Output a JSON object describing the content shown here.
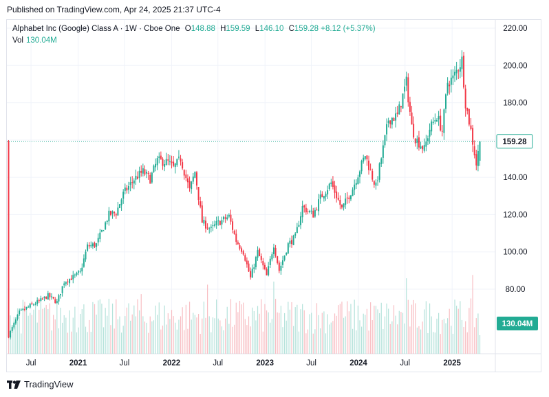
{
  "header": {
    "published": "Published on TradingView.com, Apr 24, 2025 21:37 UTC-4"
  },
  "legend": {
    "symbol": "Alphabet Inc (Google) Class A · 1W · Cboe One",
    "open_label": "O",
    "open": "148.88",
    "high_label": "H",
    "high": "159.59",
    "low_label": "L",
    "low": "146.10",
    "close_label": "C",
    "close": "159.28",
    "change": "+8.12 (+5.37%)",
    "vol_label": "Vol",
    "vol": "130.04M"
  },
  "footer": {
    "brand": "TradingView",
    "logo_icon": "tradingview-logo-icon"
  },
  "colors": {
    "up": "#22ab94",
    "down": "#f23645",
    "last_price_line": "#22ab94",
    "vol_badge": "#22ab94"
  },
  "chart_data": {
    "type": "candlestick",
    "interval": "1W",
    "ylim": [
      62,
      222
    ],
    "y_ticks": [
      "220.00",
      "200.00",
      "180.00",
      "160.00",
      "140.00",
      "120.00",
      "100.00",
      "80.00"
    ],
    "x_ticks": [
      "Jul",
      "2021",
      "Jul",
      "2022",
      "Jul",
      "2023",
      "Jul",
      "2024",
      "Jul",
      "2025"
    ],
    "x_tick_dates": [
      "2020-07-01",
      "2021-01-01",
      "2021-07-01",
      "2022-01-01",
      "2022-07-01",
      "2023-01-01",
      "2023-07-01",
      "2024-01-01",
      "2024-07-01",
      "2025-01-01"
    ],
    "date_range": [
      "2020-04-03",
      "2025-04-18"
    ],
    "last_price": "159.28",
    "last_volume": "130.04M",
    "close_path": [
      [
        "2020-04-03",
        55.0
      ],
      [
        "2020-05-15",
        67.5
      ],
      [
        "2020-06-26",
        71.0
      ],
      [
        "2020-08-07",
        74.0
      ],
      [
        "2020-09-04",
        76.5
      ],
      [
        "2020-10-09",
        73.0
      ],
      [
        "2020-11-06",
        84.0
      ],
      [
        "2020-12-18",
        87.0
      ],
      [
        "2021-01-08",
        89.0
      ],
      [
        "2021-02-05",
        103.0
      ],
      [
        "2021-03-12",
        104.0
      ],
      [
        "2021-04-30",
        120.0
      ],
      [
        "2021-05-28",
        121.0
      ],
      [
        "2021-06-25",
        131.0
      ],
      [
        "2021-08-06",
        139.0
      ],
      [
        "2021-09-10",
        143.0
      ],
      [
        "2021-10-08",
        139.0
      ],
      [
        "2021-11-05",
        149.0
      ],
      [
        "2021-12-17",
        148.0
      ],
      [
        "2022-01-07",
        145.0
      ],
      [
        "2022-02-04",
        150.0
      ],
      [
        "2022-03-11",
        133.0
      ],
      [
        "2022-04-01",
        143.0
      ],
      [
        "2022-04-29",
        116.0
      ],
      [
        "2022-06-03",
        112.0
      ],
      [
        "2022-06-24",
        115.0
      ],
      [
        "2022-08-12",
        119.0
      ],
      [
        "2022-09-09",
        106.0
      ],
      [
        "2022-10-07",
        100.0
      ],
      [
        "2022-11-04",
        86.0
      ],
      [
        "2022-12-02",
        100.0
      ],
      [
        "2023-01-06",
        87.0
      ],
      [
        "2023-02-03",
        104.0
      ],
      [
        "2023-02-24",
        90.0
      ],
      [
        "2023-03-31",
        104.0
      ],
      [
        "2023-04-28",
        108.0
      ],
      [
        "2023-05-26",
        124.0
      ],
      [
        "2023-07-07",
        120.0
      ],
      [
        "2023-08-04",
        129.0
      ],
      [
        "2023-09-15",
        137.0
      ],
      [
        "2023-10-27",
        123.0
      ],
      [
        "2023-12-08",
        134.0
      ],
      [
        "2024-01-26",
        152.0
      ],
      [
        "2024-02-23",
        140.0
      ],
      [
        "2024-03-08",
        135.0
      ],
      [
        "2024-04-26",
        171.0
      ],
      [
        "2024-05-31",
        173.0
      ],
      [
        "2024-07-05",
        191.0
      ],
      [
        "2024-07-26",
        167.0
      ],
      [
        "2024-08-09",
        161.0
      ],
      [
        "2024-09-13",
        155.0
      ],
      [
        "2024-10-04",
        166.0
      ],
      [
        "2024-11-01",
        173.0
      ],
      [
        "2024-11-22",
        165.0
      ],
      [
        "2024-12-13",
        191.0
      ],
      [
        "2025-01-03",
        193.0
      ],
      [
        "2025-02-07",
        203.0
      ],
      [
        "2025-02-21",
        180.0
      ],
      [
        "2025-03-14",
        165.0
      ],
      [
        "2025-04-04",
        147.0
      ],
      [
        "2025-04-18",
        159.28
      ]
    ]
  }
}
